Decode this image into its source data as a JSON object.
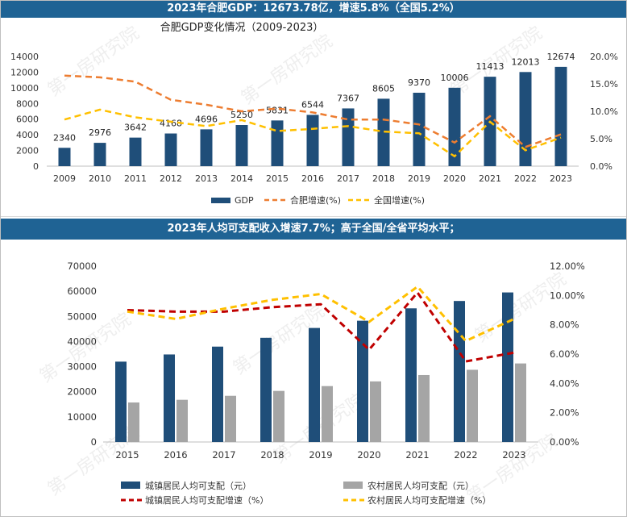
{
  "banner_top": "2023年合肥GDP：12673.78亿，增速5.8%（全国5.2%）",
  "banner_bottom": "2023年人均可支配收入增速7.7%；高于全国/全省平均水平；",
  "watermark": "第一房研究院",
  "colors": {
    "banner": "#1f6394",
    "gdp_bar": "#1f4e79",
    "hefei_line": "#ed7d31",
    "national_line": "#ffc000",
    "urban_bar": "#1f4e79",
    "rural_bar": "#a5a5a5",
    "urban_line": "#c00000",
    "rural_line": "#ffc000"
  },
  "chart_data": [
    {
      "type": "bar",
      "title": "合肥GDP变化情况（2009-2023）",
      "categories": [
        "2009",
        "2010",
        "2011",
        "2012",
        "2013",
        "2014",
        "2015",
        "2016",
        "2017",
        "2018",
        "2019",
        "2020",
        "2021",
        "2022",
        "2023"
      ],
      "ylim": [
        0,
        14000
      ],
      "yticks": [
        "0",
        "2000",
        "4000",
        "6000",
        "8000",
        "10000",
        "12000",
        "14000"
      ],
      "y2lim": [
        0,
        20
      ],
      "y2ticks": [
        "0.0%",
        "5.0%",
        "10.0%",
        "15.0%",
        "20.0%"
      ],
      "legend_position": "bottom",
      "series": [
        {
          "name": "GDP",
          "kind": "bar",
          "values": [
            2340,
            2976,
            3642,
            4168,
            4696,
            5250,
            5831,
            6544,
            7367,
            8605,
            9370,
            10006,
            11413,
            12013,
            12674
          ],
          "labels": [
            "2340",
            "2976",
            "3642",
            "4168",
            "4696",
            "5250",
            "5831",
            "6544",
            "7367",
            "8605",
            "9370",
            "10006",
            "11413",
            "12013",
            "12674"
          ]
        },
        {
          "name": "合肥增速(%)",
          "kind": "line",
          "style": "dashed",
          "axis": "right",
          "values": [
            16.5,
            16.2,
            15.4,
            12.1,
            11.2,
            10.0,
            10.5,
            9.8,
            8.5,
            8.5,
            7.6,
            4.3,
            9.1,
            3.5,
            5.8
          ]
        },
        {
          "name": "全国增速(%)",
          "kind": "line",
          "style": "dashed",
          "axis": "right",
          "values": [
            8.5,
            10.3,
            8.9,
            8.1,
            7.3,
            8.4,
            6.4,
            6.8,
            7.3,
            6.3,
            6.0,
            1.8,
            8.1,
            2.9,
            5.2
          ]
        }
      ]
    },
    {
      "type": "bar",
      "title": "",
      "categories": [
        "2015",
        "2016",
        "2017",
        "2018",
        "2019",
        "2020",
        "2021",
        "2022",
        "2023"
      ],
      "ylim": [
        0,
        70000
      ],
      "yticks": [
        "0",
        "10000",
        "20000",
        "30000",
        "40000",
        "50000",
        "60000",
        "70000"
      ],
      "y2lim": [
        0,
        12
      ],
      "y2ticks": [
        "0.00%",
        "2.00%",
        "4.00%",
        "6.00%",
        "8.00%",
        "10.00%",
        "12.00%"
      ],
      "legend_position": "bottom",
      "series": [
        {
          "name": "城镇居民人均可支配（元）",
          "kind": "bar",
          "values": [
            31990,
            34850,
            37970,
            41480,
            45400,
            48280,
            53210,
            56140,
            59540
          ]
        },
        {
          "name": "农村居民人均可支配（元）",
          "kind": "bar",
          "values": [
            15730,
            16800,
            18390,
            20340,
            22260,
            24120,
            26660,
            28750,
            31270
          ]
        },
        {
          "name": "城镇居民人均可支配增速（%）",
          "kind": "line",
          "style": "dashed",
          "axis": "right",
          "values": [
            9.0,
            8.9,
            8.9,
            9.2,
            9.4,
            6.3,
            10.2,
            5.5,
            6.1
          ]
        },
        {
          "name": "农村居民人均可支配增速（%）",
          "kind": "line",
          "style": "dashed",
          "axis": "right",
          "values": [
            8.9,
            8.4,
            9.1,
            9.7,
            10.1,
            8.2,
            10.6,
            6.9,
            8.4
          ]
        }
      ]
    }
  ]
}
